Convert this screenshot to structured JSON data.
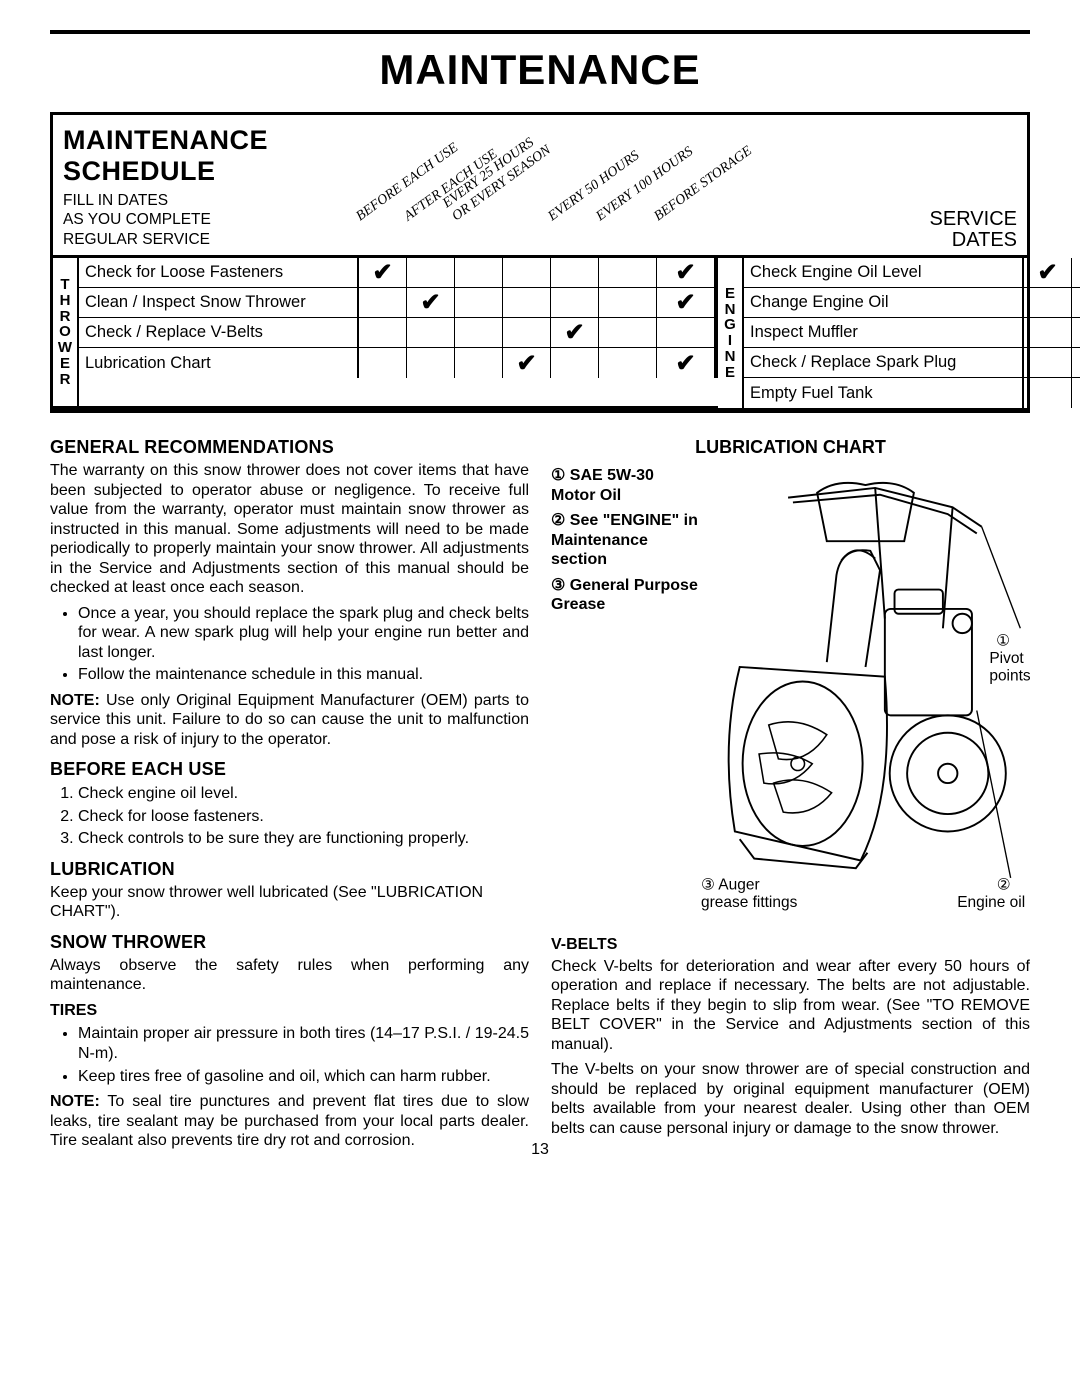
{
  "page": {
    "title": "MAINTENANCE",
    "page_number": "13"
  },
  "schedule": {
    "title": "MAINTENANCE SCHEDULE",
    "sub": "FILL IN DATES\nAS YOU COMPLETE\nREGULAR SERVICE",
    "service_dates": "SERVICE\nDATES",
    "columns": [
      "BEFORE EACH USE",
      "AFTER EACH USE",
      "EVERY 25 HOURS\nOR EVERY SEASON",
      "",
      "EVERY 50 HOURS",
      "EVERY 100 HOURS",
      "BEFORE STORAGE"
    ],
    "groups": [
      {
        "label": "T\nH\nR\nO\nW\nE\nR",
        "rows": [
          {
            "label": "Check for Loose Fasteners",
            "checks": [
              true,
              false,
              false,
              false,
              false,
              false,
              true
            ]
          },
          {
            "label": "Clean / Inspect Snow Thrower",
            "checks": [
              false,
              true,
              false,
              false,
              false,
              false,
              true
            ]
          },
          {
            "label": "Check / Replace V-Belts",
            "checks": [
              false,
              false,
              false,
              false,
              true,
              false,
              false
            ]
          },
          {
            "label": "Lubrication Chart",
            "checks": [
              false,
              false,
              false,
              true,
              false,
              false,
              true
            ]
          }
        ]
      },
      {
        "label": "E\nN\nG\nI\nN\nE",
        "rows": [
          {
            "label": "Check Engine Oil Level",
            "checks": [
              true,
              false,
              false,
              false,
              false,
              false,
              false
            ]
          },
          {
            "label": "Change Engine Oil",
            "checks": [
              false,
              false,
              false,
              true,
              false,
              false,
              false
            ]
          },
          {
            "label": "Inspect Muffler",
            "checks": [
              false,
              false,
              false,
              false,
              true,
              false,
              false
            ]
          },
          {
            "label": "Check / Replace Spark Plug",
            "checks": [
              false,
              false,
              false,
              false,
              false,
              true,
              false
            ]
          },
          {
            "label": "Empty Fuel Tank",
            "checks": [
              false,
              false,
              false,
              false,
              false,
              false,
              true
            ]
          }
        ]
      }
    ]
  },
  "sections": {
    "gen_title": "GENERAL RECOMMENDATIONS",
    "gen_p1": "The warranty on this snow thrower does not cover items that have been subjected to operator abuse or negligence. To receive full value from the warranty, operator must maintain snow thrower as instructed in this manual. Some adjustments will need to be made periodically to properly maintain your snow thrower. All adjustments in the Service and Adjustments section of this manual should be checked at least once each season.",
    "gen_b1": "Once a year, you should replace the spark plug and check belts for wear. A new spark plug will help your engine run better and last longer.",
    "gen_b2": "Follow the maintenance schedule in this manual.",
    "gen_note_label": "NOTE:",
    "gen_note": "Use only Original Equipment Manufacturer (OEM) parts to service this unit. Failure to do so can cause the unit to malfunction and pose a risk of injury to the operator.",
    "before_title": "BEFORE EACH USE",
    "before_1": "Check engine oil level.",
    "before_2": "Check for loose fasteners.",
    "before_3": "Check controls to be sure they are functioning properly.",
    "lub_title": "LUBRICATION",
    "lub_p": "Keep your snow thrower well lubricated (See \"LUBRICATION CHART\").",
    "st_title": "SNOW THROWER",
    "st_p": "Always observe the safety rules when performing any maintenance.",
    "tires_title": "TIRES",
    "tires_b1": "Maintain proper air pressure in both tires (14–17 P.S.I. / 19-24.5 N-m).",
    "tires_b2": "Keep tires free of gasoline and oil, which can harm rubber.",
    "tires_note_label": "NOTE:",
    "tires_note": "To seal tire punctures and prevent flat tires due to slow leaks, tire sealant may be purchased from your local parts dealer. Tire sealant also prevents tire dry rot and corrosion.",
    "lube_chart_title": "LUBRICATION CHART",
    "lube_1": "① SAE 5W-30 Motor Oil",
    "lube_2": "② See \"ENGINE\" in Maintenance section",
    "lube_3": "③ General Purpose Grease",
    "lube_c1": "① Pivot points",
    "lube_c2": "② Engine oil",
    "lube_c3": "③ Auger grease fittings",
    "vb_title": "V-BELTS",
    "vb_p1": "Check V-belts for deterioration and wear after every 50 hours of operation and replace if necessary. The belts are not adjustable. Replace belts if they begin to slip from wear. (See \"TO REMOVE BELT COVER\" in the Service and Adjustments section of this manual).",
    "vb_p2": "The V-belts on your snow thrower are of special construction and should be replaced by original equipment manufacturer (OEM) belts available from your nearest dealer. Using other than OEM belts can cause personal injury or damage to the snow thrower."
  }
}
